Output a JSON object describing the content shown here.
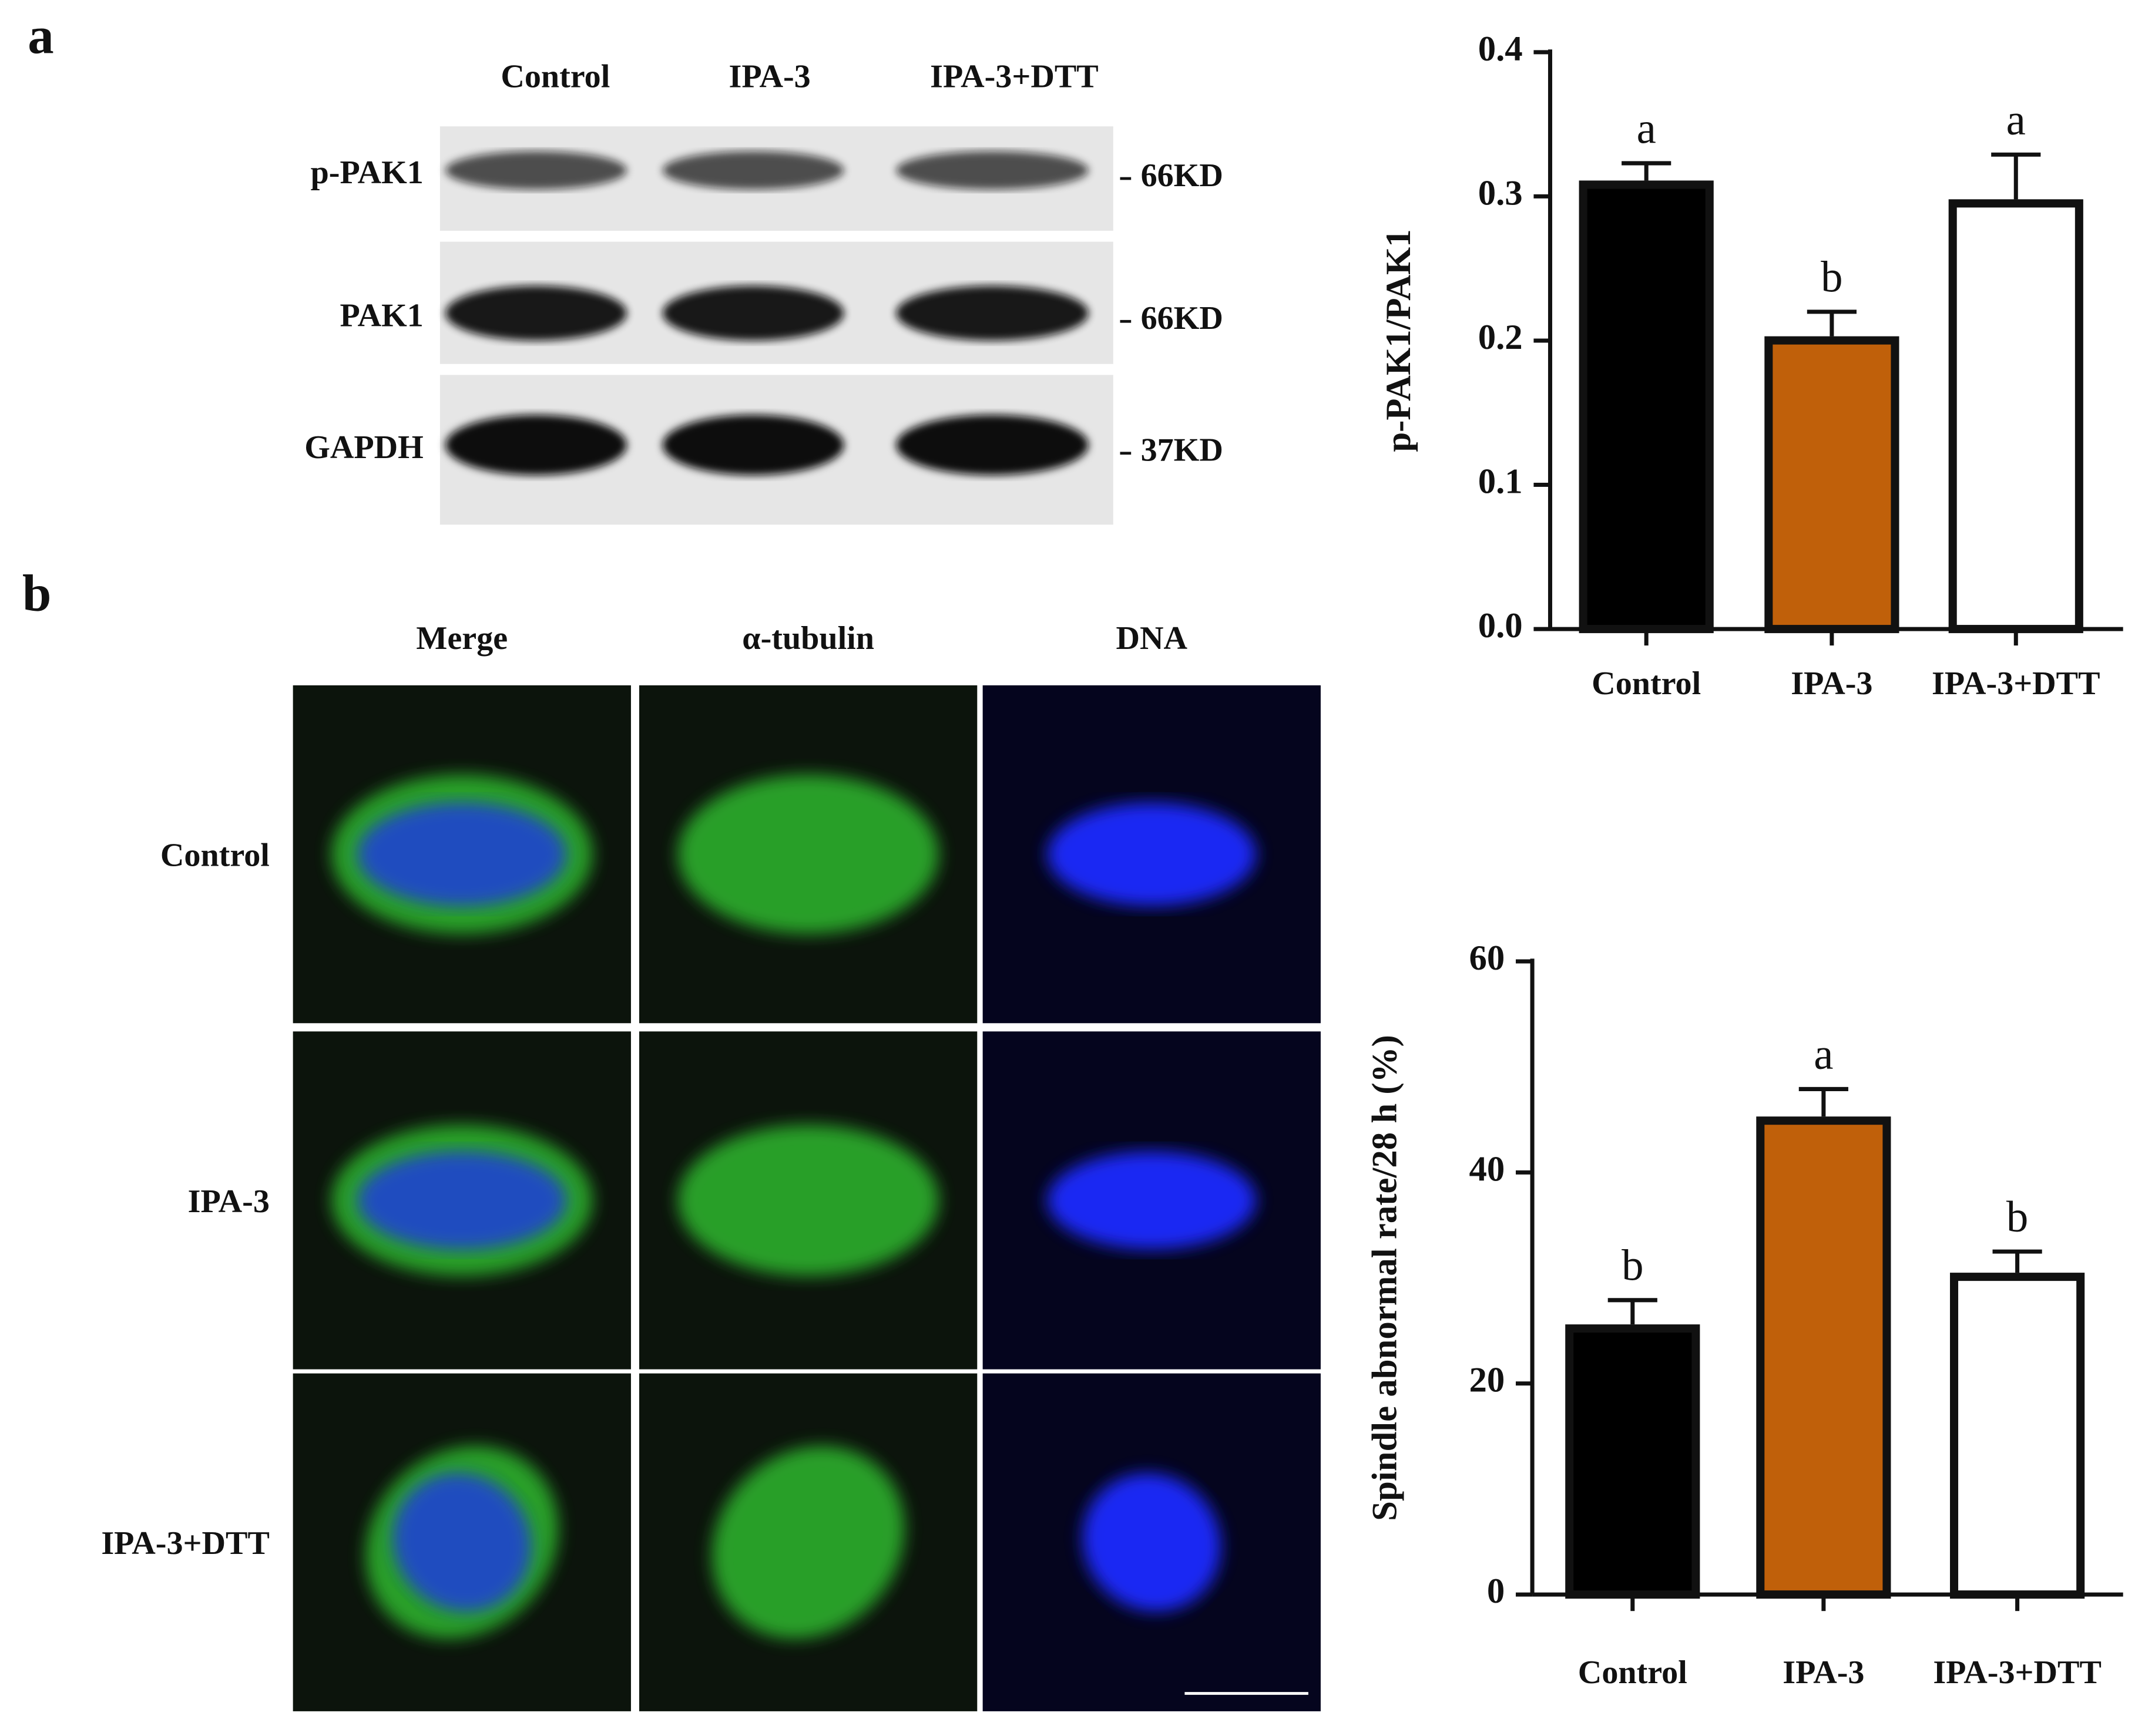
{
  "figure": {
    "panels": [
      "a",
      "b"
    ],
    "blot": {
      "columns": [
        "Control",
        "IPA-3",
        "IPA-3+DTT"
      ],
      "rows": [
        "p-PAK1",
        "PAK1",
        "GAPDH"
      ],
      "sizes": [
        "66KD",
        "66KD",
        "37KD"
      ]
    },
    "microscopy": {
      "columns": [
        "Merge",
        "α-tubulin",
        "DNA"
      ],
      "rows": [
        "Control",
        "IPA-3",
        "IPA-3+DTT"
      ]
    }
  },
  "chart_data": [
    {
      "type": "bar",
      "ylabel": "p-PAK1/PAK1",
      "categories": [
        "Control",
        "IPA-3",
        "IPA-3+DTT"
      ],
      "values": [
        0.311,
        0.203,
        0.298
      ],
      "errors": [
        0.012,
        0.017,
        0.031
      ],
      "annotations": [
        "a",
        "b",
        "a"
      ],
      "colors": [
        "#000000",
        "#c0600a",
        "#ffffff"
      ],
      "ylim": [
        0,
        0.4
      ],
      "yticks": [
        {
          "value": 0,
          "label": "0.0"
        },
        0.1,
        0.2,
        0.3,
        0.4
      ]
    },
    {
      "type": "bar",
      "ylabel": "Spindle abnormal rate/28 h (%)",
      "categories": [
        "Control",
        "IPA-3",
        "IPA-3+DTT"
      ],
      "values": [
        25.6,
        45.3,
        30.5
      ],
      "errors": [
        2.3,
        2.6,
        2.0
      ],
      "annotations": [
        "b",
        "a",
        "b"
      ],
      "colors": [
        "#000000",
        "#c0600a",
        "#ffffff"
      ],
      "ylim": [
        0,
        60
      ],
      "yticks": [
        0,
        20,
        40,
        60
      ]
    }
  ]
}
